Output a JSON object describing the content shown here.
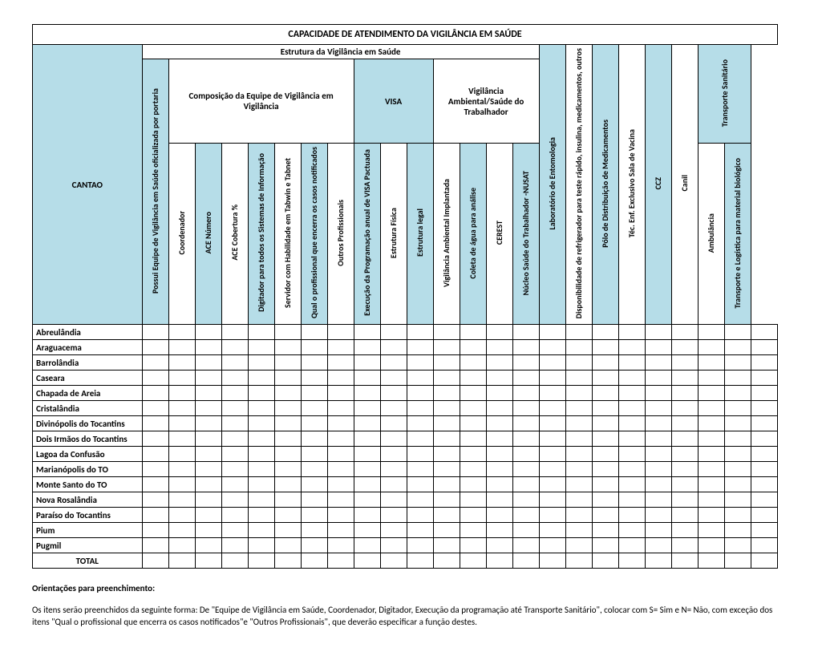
{
  "title": "CAPACIDADE DE ATENDIMENTO DA VIGILÂNCIA EM SAÚDE",
  "header": {
    "cantao": "CANTAO",
    "estrutura": "Estrutura da Vigilância em Saúde",
    "possui_equipe": "Possui Equipe de Vigilância em Saúde oficializada por portaria",
    "composicao": "Composição da Equipe de Vigilância em Vigilância",
    "visa": "VISA",
    "vig_amb": "Vigilância Ambiental/Saúde do Trabalhador",
    "lab_ent": "Laboratório de Entomologia",
    "disp_refrig": "Disponibilidade de refrigerador para teste rápido, insulina, medicamentos, outros",
    "polo_med": "Pólo de Distribuição de Medicamentos",
    "tec_enf": "Téc. Enf. Exclusivo Sala de Vacina",
    "ccz": "CCZ",
    "canil": "Canil",
    "transporte_san": "Transporte Sanitário",
    "cols": {
      "coordenador": "Coordenador",
      "ace_numero": "ACE Número",
      "ace_cobertura": "ACE Cobertura %",
      "digitador": "Digitador para todos os Sistemas de Informação",
      "servidor_hab": "Servidor com Habilidade em Tabwin e Tabnet",
      "qual_prof": "Qual o profissional que encerra os casos notificados",
      "outros_prof": "Outros Profissionais",
      "exec_prog": "Execução da Programação anual de VISA Pactuada",
      "estr_fisica": "Estrutura Física",
      "estr_legal": "Estrutura legal",
      "vig_amb_impl": "Vigilância Ambiental Implantada",
      "coleta_agua": "Coleta de água para análise",
      "cerest": "CEREST",
      "nucleo_saude": "Núcleo Saúde do Trabalhador -NUSAT",
      "ambulancia": "Ambulância",
      "transp_log": "Transporte e Logística para material biológico"
    }
  },
  "rows": [
    "Abreulândia",
    "Araguacema",
    "Barrolândia",
    "Caseara",
    "Chapada de Areia",
    "Cristalândia",
    "Divinópolis do Tocantins",
    "Dois Irmãos do Tocantins",
    "Lagoa da Confusão",
    "Marianópolis do TO",
    "Monte Santo do TO",
    "Nova Rosalândia",
    "Paraíso do Tocantins",
    "Pium",
    "Pugmil"
  ],
  "total_label": "TOTAL",
  "notes": {
    "title": "Orientações para preenchimento:",
    "body": "Os itens serão preenchidos da seguinte forma: De \"Equipe de Vigilância em Saúde, Coordenador, Digitador, Execução da programação até Transporte Sanitário\", colocar com S= Sim e N= Não, com exceção dos itens \"Qual o profissional que encerra os casos notificados\"e \"Outros Profissionais\", que deverão especificar a função destes."
  },
  "style": {
    "header_bg": "#b6dde8",
    "border": "#000000",
    "font_size_title": 12,
    "font_size_body": 11,
    "font_size_vertical": 10
  }
}
